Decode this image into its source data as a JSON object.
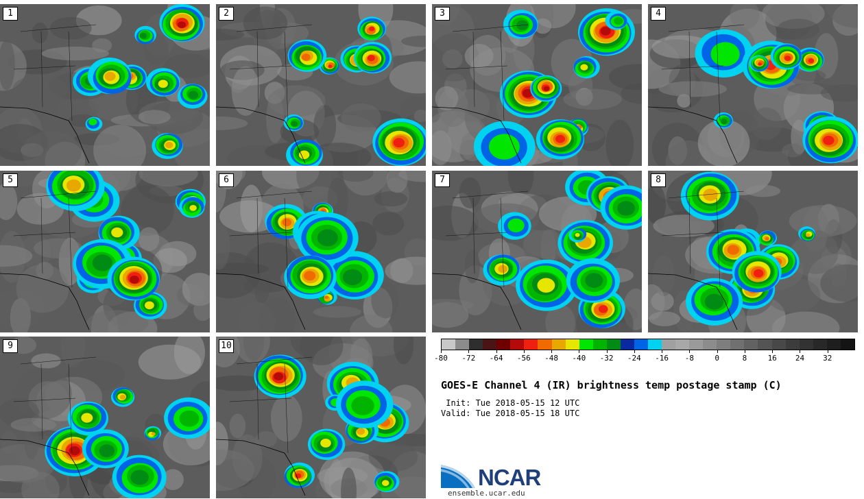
{
  "panels": [
    {
      "label": "1"
    },
    {
      "label": "2"
    },
    {
      "label": "3"
    },
    {
      "label": "4"
    },
    {
      "label": "5"
    },
    {
      "label": "6"
    },
    {
      "label": "7"
    },
    {
      "label": "8"
    },
    {
      "label": "9"
    },
    {
      "label": "10"
    }
  ],
  "title": "GOES-E Channel 4 (IR) brightness temp postage stamp (C)",
  "init_line": " Init: Tue 2018-05-15 12 UTC",
  "valid_line": "Valid: Tue 2018-05-15 18 UTC",
  "logo": {
    "wordmark": "NCAR",
    "url": "ensemble.ucar.edu"
  },
  "colorbar": {
    "unit": "C",
    "ticks": [
      "-80",
      "-72",
      "-64",
      "-56",
      "-48",
      "-40",
      "-32",
      "-24",
      "-16",
      "-8",
      "0",
      "8",
      "16",
      "24",
      "32"
    ],
    "colors": [
      "#c8c8c8",
      "#8c8c8c",
      "#2e2e2e",
      "#4a1414",
      "#6e0000",
      "#b40a0a",
      "#f02010",
      "#f06a00",
      "#e8a800",
      "#e6e600",
      "#00e600",
      "#00b400",
      "#008c14",
      "#0a28a0",
      "#0064e6",
      "#00d2f0",
      "#a0a0a0",
      "#a8a8a8",
      "#9a9a9a",
      "#8c8c8c",
      "#7e7e7e",
      "#707070",
      "#626262",
      "#545454",
      "#484848",
      "#3c3c3c",
      "#323232",
      "#282828",
      "#1e1e1e",
      "#141414"
    ]
  }
}
